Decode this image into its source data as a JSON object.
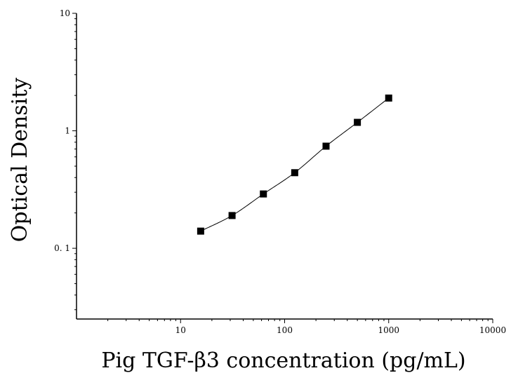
{
  "chart_data": {
    "type": "scatter",
    "title": "",
    "xlabel": "Pig TGF-β3 concentration (pg/mL)",
    "ylabel": "Optical Density",
    "x_scale": "log",
    "y_scale": "log",
    "xlim": [
      1,
      10000
    ],
    "ylim": [
      0.025,
      10
    ],
    "x_ticks": [
      {
        "value": 10,
        "label": "10"
      },
      {
        "value": 100,
        "label": "100"
      },
      {
        "value": 1000,
        "label": "1000"
      },
      {
        "value": 10000,
        "label": "10000"
      }
    ],
    "y_ticks": [
      {
        "value": 0.1,
        "label": "0. 1"
      },
      {
        "value": 1,
        "label": "1"
      },
      {
        "value": 10,
        "label": "10"
      }
    ],
    "grid": false,
    "legend": "none",
    "series": [
      {
        "marker": "square",
        "fit_line": true,
        "x": [
          15.6,
          31.25,
          62.5,
          125,
          250,
          500,
          1000
        ],
        "y": [
          0.14,
          0.19,
          0.29,
          0.44,
          0.74,
          1.18,
          1.9
        ]
      }
    ],
    "colors": {
      "marker": "#000000",
      "line": "#000000",
      "axis": "#000000"
    }
  }
}
